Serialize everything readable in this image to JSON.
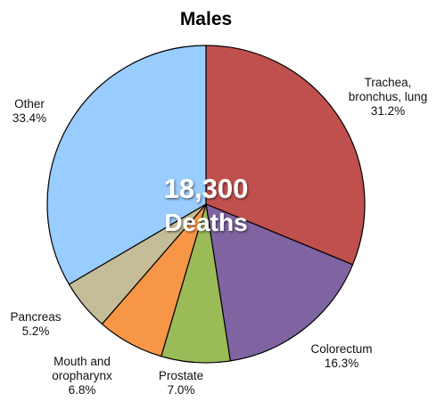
{
  "chart_data": {
    "type": "pie",
    "title": "Males",
    "center_text": [
      "18,300",
      "Deaths"
    ],
    "slices": [
      {
        "label": [
          "Trachea,",
          "bronchus, lung"
        ],
        "percent_label": "31.2%",
        "value": 31.2,
        "color": "#c0504d"
      },
      {
        "label": [
          "Colorectum"
        ],
        "percent_label": "16.3%",
        "value": 16.3,
        "color": "#8064a2"
      },
      {
        "label": [
          "Prostate"
        ],
        "percent_label": "7.0%",
        "value": 7.0,
        "color": "#9bbb59"
      },
      {
        "label": [
          "Mouth and",
          "oropharynx"
        ],
        "percent_label": "6.8%",
        "value": 6.8,
        "color": "#f79646"
      },
      {
        "label": [
          "Pancreas"
        ],
        "percent_label": "5.2%",
        "value": 5.2,
        "color": "#c4bd97"
      },
      {
        "label": [
          "Other"
        ],
        "percent_label": "33.4%",
        "value": 33.4,
        "color": "#99ccff"
      }
    ]
  }
}
